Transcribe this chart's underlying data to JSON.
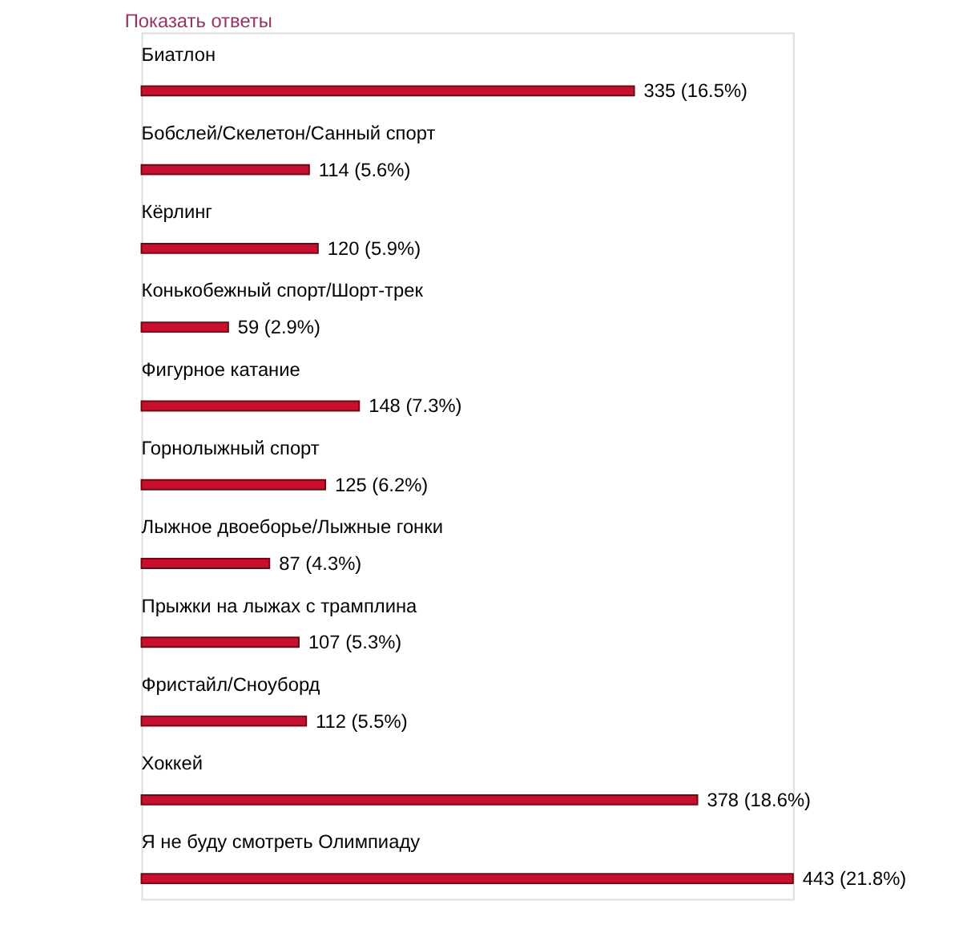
{
  "chart_data": {
    "type": "bar",
    "orientation": "horizontal",
    "title": "Показать ответы",
    "categories": [
      "Биатлон",
      "Бобслей/Скелетон/Санный спорт",
      "Кёрлинг",
      "Конькобежный спорт/Шорт-трек",
      "Фигурное катание",
      "Горнолыжный спорт",
      "Лыжное двоеборье/Лыжные гонки",
      "Прыжки на лыжах с трамплина",
      "Фристайл/Сноуборд",
      "Хоккей",
      "Я не буду смотреть Олимпиаду"
    ],
    "values": [
      335,
      114,
      120,
      59,
      148,
      125,
      87,
      107,
      112,
      378,
      443
    ],
    "value_labels": [
      "335 (16.5%)",
      "114 (5.6%)",
      "120 (5.9%)",
      "59 (2.9%)",
      "148 (7.3%)",
      "125 (6.2%)",
      "87 (4.3%)",
      "107 (5.3%)",
      "112 (5.5%)",
      "378 (18.6%)",
      "443 (21.8%)"
    ],
    "color": "#c8102e"
  }
}
